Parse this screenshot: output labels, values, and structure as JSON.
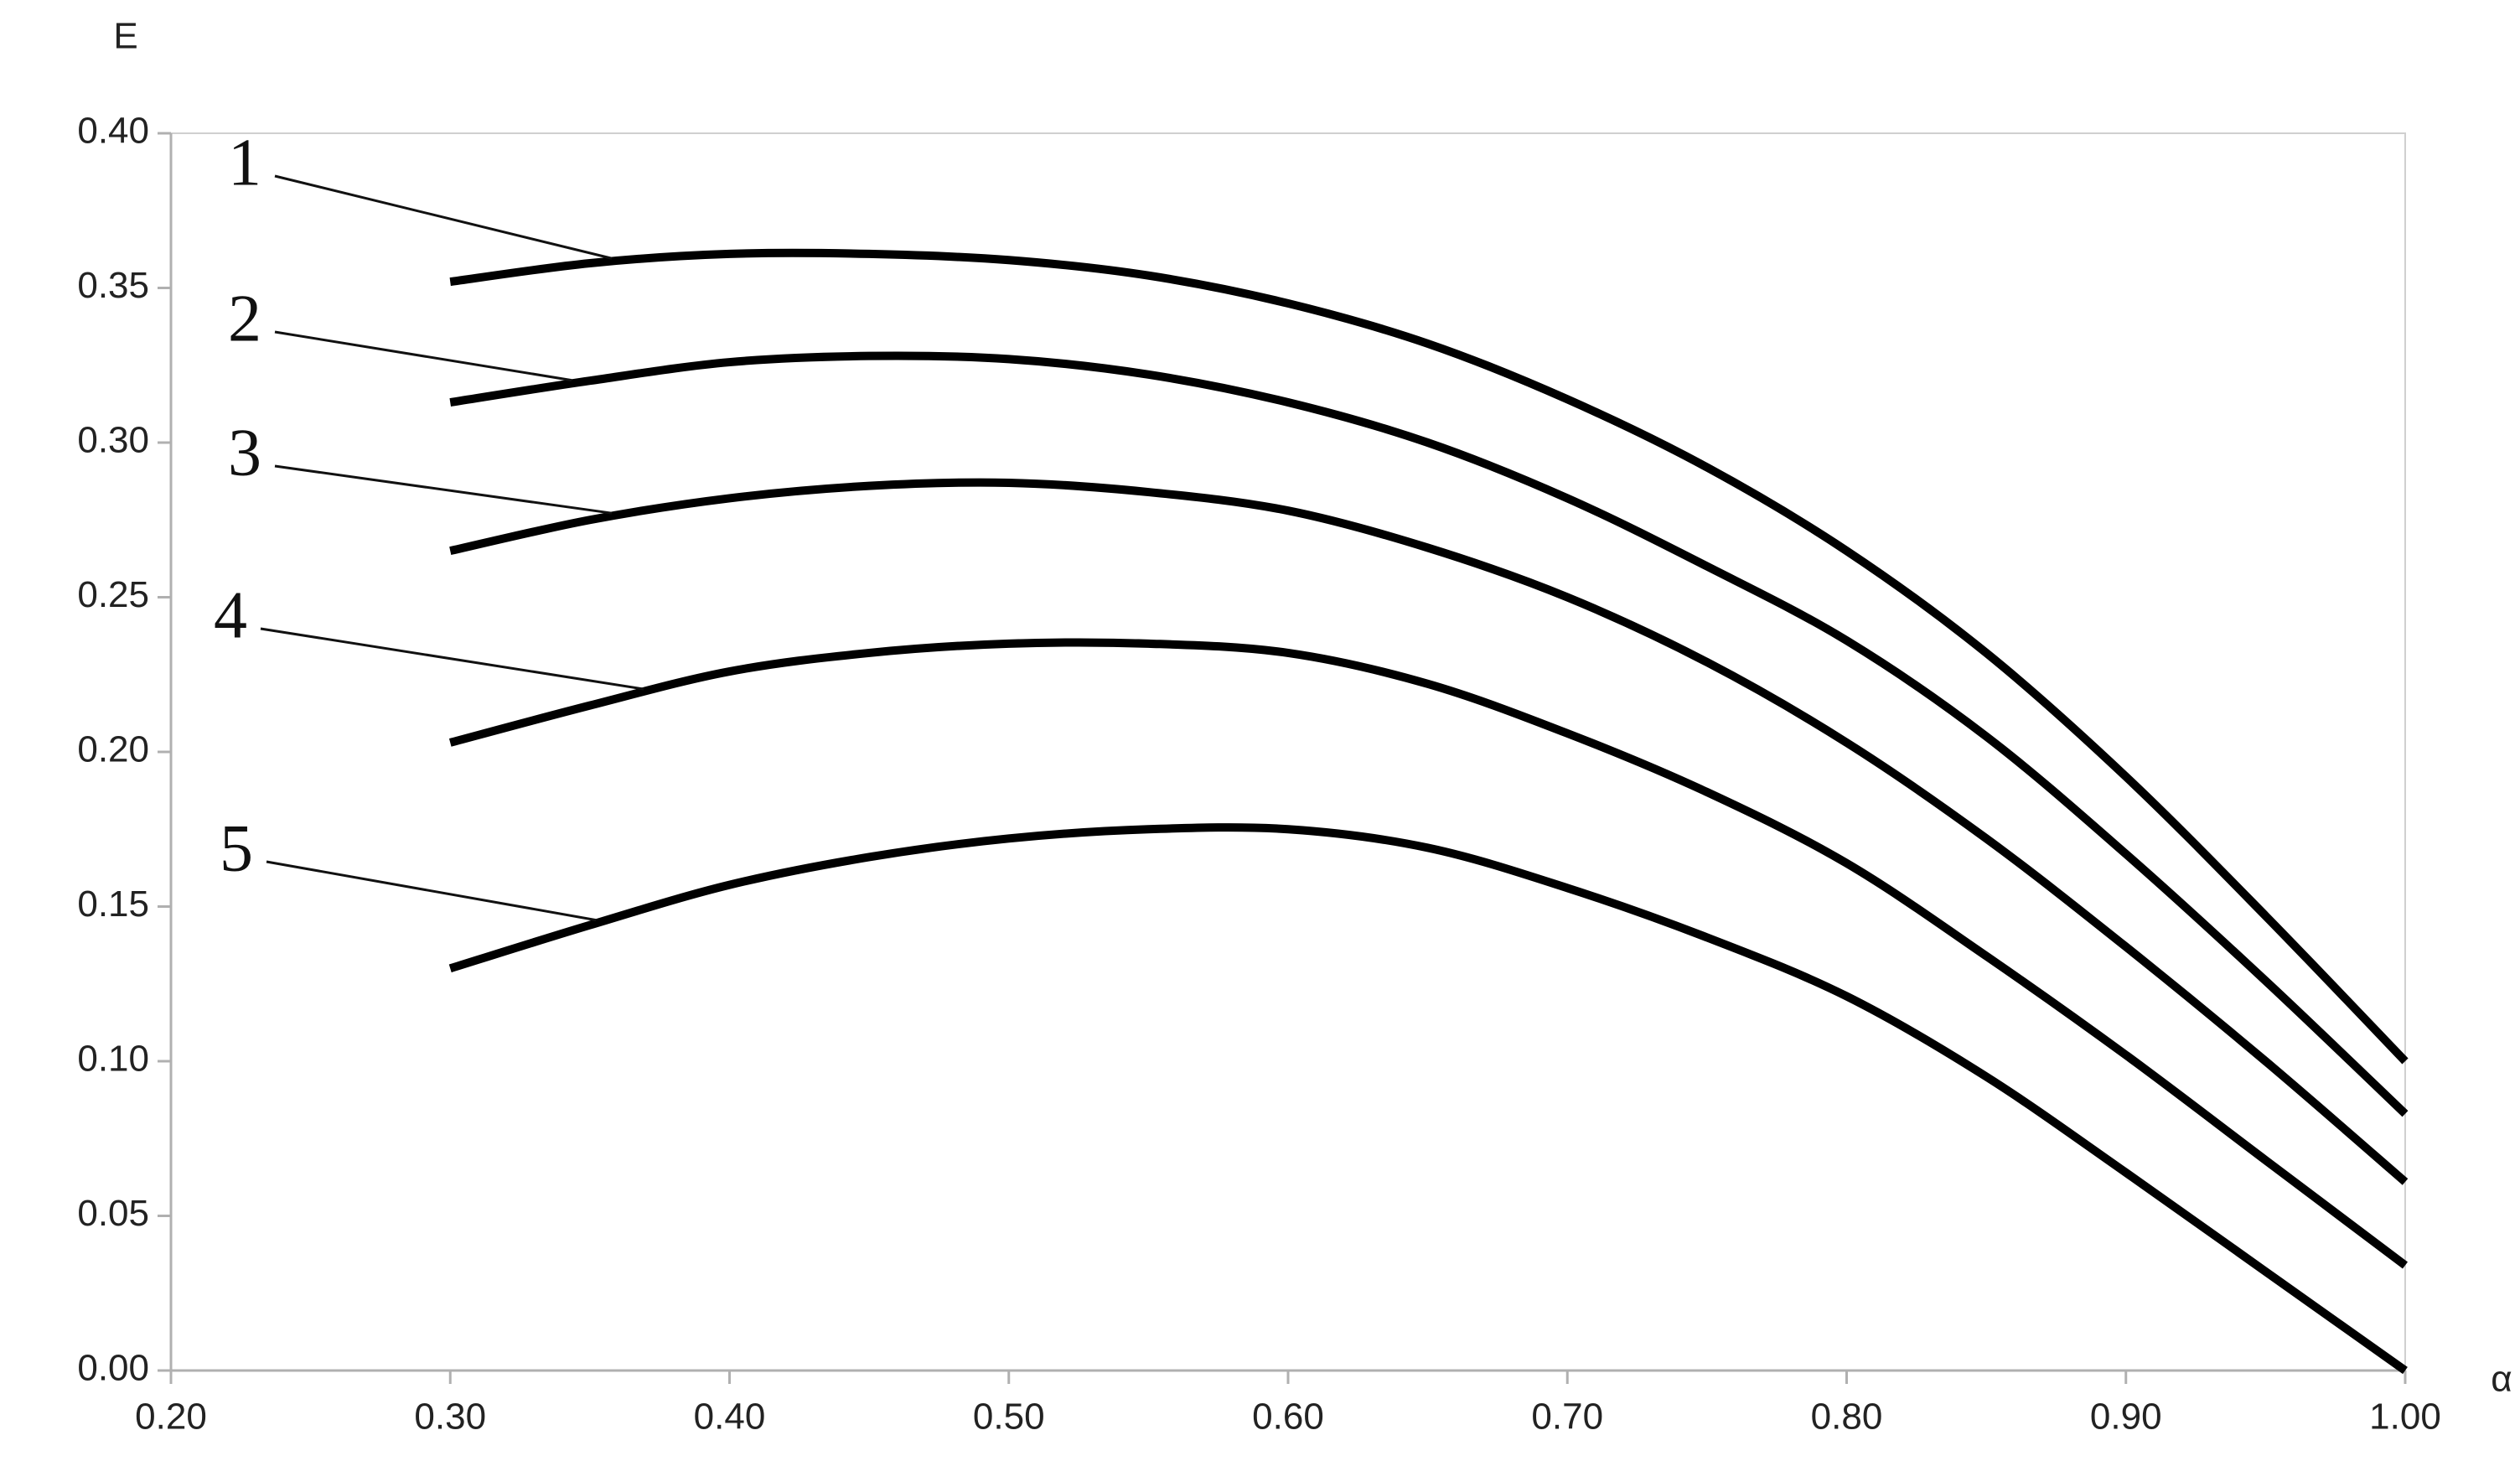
{
  "chart_data": {
    "type": "line",
    "x_label": "α",
    "y_label": "E",
    "x": [
      0.3,
      0.35,
      0.4,
      0.45,
      0.5,
      0.55,
      0.6,
      0.65,
      0.7,
      0.75,
      0.8,
      0.85,
      0.9,
      0.95,
      1.0
    ],
    "series": [
      {
        "name": "1",
        "color": "#000000",
        "values": [
          0.352,
          0.358,
          0.361,
          0.361,
          0.359,
          0.354,
          0.345,
          0.332,
          0.314,
          0.292,
          0.265,
          0.232,
          0.192,
          0.147,
          0.1
        ]
      },
      {
        "name": "2",
        "color": "#000000",
        "values": [
          0.313,
          0.32,
          0.326,
          0.328,
          0.327,
          0.322,
          0.313,
          0.3,
          0.282,
          0.26,
          0.236,
          0.205,
          0.167,
          0.126,
          0.083
        ]
      },
      {
        "name": "3",
        "color": "#000000",
        "values": [
          0.265,
          0.275,
          0.282,
          0.286,
          0.287,
          0.284,
          0.278,
          0.266,
          0.25,
          0.229,
          0.203,
          0.172,
          0.137,
          0.1,
          0.061
        ]
      },
      {
        "name": "4",
        "color": "#000000",
        "values": [
          0.203,
          0.215,
          0.226,
          0.232,
          0.235,
          0.235,
          0.232,
          0.222,
          0.206,
          0.187,
          0.164,
          0.134,
          0.102,
          0.068,
          0.034
        ]
      },
      {
        "name": "5",
        "color": "#000000",
        "values": [
          0.13,
          0.144,
          0.157,
          0.166,
          0.172,
          0.175,
          0.175,
          0.169,
          0.156,
          0.14,
          0.121,
          0.095,
          0.064,
          0.032,
          0.0
        ]
      }
    ],
    "xlim": [
      0.2,
      1.0
    ],
    "xticks": [
      {
        "value": 0.2,
        "label": "0.20"
      },
      {
        "value": 0.3,
        "label": "0.30"
      },
      {
        "value": 0.4,
        "label": "0.40"
      },
      {
        "value": 0.5,
        "label": "0.50"
      },
      {
        "value": 0.6,
        "label": "0.60"
      },
      {
        "value": 0.7,
        "label": "0.70"
      },
      {
        "value": 0.8,
        "label": "0.80"
      },
      {
        "value": 0.9,
        "label": "0.90"
      },
      {
        "value": 1.0,
        "label": "1.00"
      }
    ],
    "ylim": [
      0,
      0.4
    ],
    "yticks": [
      {
        "value": 0,
        "label": "0.00"
      },
      {
        "value": 0.05,
        "label": "0.05"
      },
      {
        "value": 0.1,
        "label": "0.10"
      },
      {
        "value": 0.15,
        "label": "0.15"
      },
      {
        "value": 0.2,
        "label": "0.20"
      },
      {
        "value": 0.25,
        "label": "0.25"
      },
      {
        "value": 0.3,
        "label": "0.30"
      },
      {
        "value": 0.35,
        "label": "0.35"
      },
      {
        "value": 0.4,
        "label": "0.40"
      }
    ],
    "grid": false
  }
}
